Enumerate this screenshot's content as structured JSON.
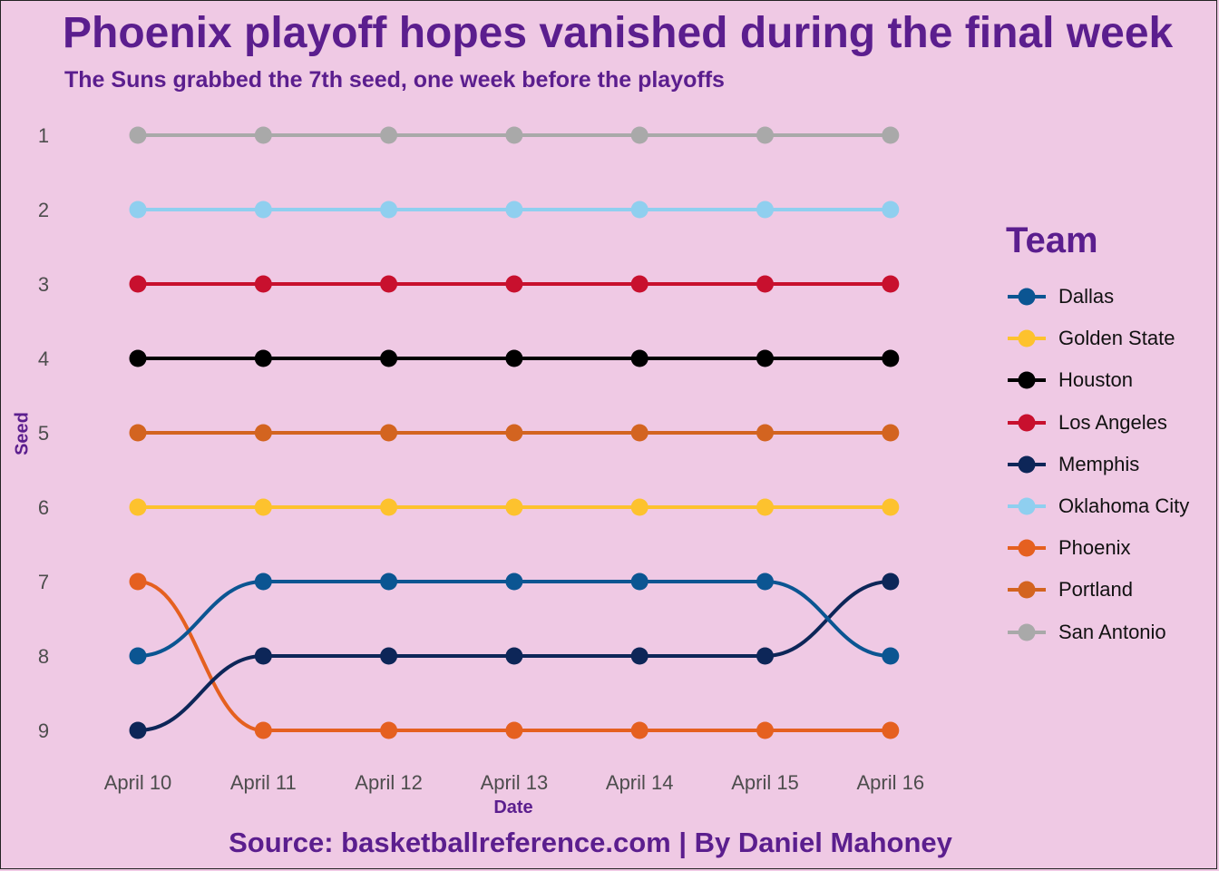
{
  "title": "Phoenix playoff hopes vanished during the final week",
  "subtitle": "The Suns grabbed the 7th seed, one week before the playoffs",
  "caption": "Source: basketballreference.com | By Daniel Mahoney",
  "chart_data": {
    "type": "line",
    "xlabel": "Date",
    "ylabel": "Seed",
    "x": [
      "April 10",
      "April 11",
      "April 12",
      "April 13",
      "April 14",
      "April 15",
      "April 16"
    ],
    "y_ticks": [
      "1",
      "2",
      "3",
      "4",
      "5",
      "6",
      "7",
      "8",
      "9"
    ],
    "ylim": [
      9,
      1
    ],
    "y_reversed": true,
    "grid": false,
    "legend_title": "Team",
    "legend_position": "right",
    "series": [
      {
        "name": "Dallas",
        "color": "#0b5592",
        "values": [
          8,
          7,
          7,
          7,
          7,
          7,
          8
        ]
      },
      {
        "name": "Golden State",
        "color": "#fdc22e",
        "values": [
          6,
          6,
          6,
          6,
          6,
          6,
          6
        ]
      },
      {
        "name": "Houston",
        "color": "#000000",
        "values": [
          4,
          4,
          4,
          4,
          4,
          4,
          4
        ]
      },
      {
        "name": "Los Angeles",
        "color": "#c8102e",
        "values": [
          3,
          3,
          3,
          3,
          3,
          3,
          3
        ]
      },
      {
        "name": "Memphis",
        "color": "#0d2658",
        "values": [
          9,
          8,
          8,
          8,
          8,
          8,
          7
        ]
      },
      {
        "name": "Oklahoma City",
        "color": "#8fcfef",
        "values": [
          2,
          2,
          2,
          2,
          2,
          2,
          2
        ]
      },
      {
        "name": "Phoenix",
        "color": "#e56020",
        "values": [
          7,
          9,
          9,
          9,
          9,
          9,
          9
        ]
      },
      {
        "name": "Portland",
        "color": "#d36420",
        "values": [
          5,
          5,
          5,
          5,
          5,
          5,
          5
        ]
      },
      {
        "name": "San Antonio",
        "color": "#a9a9a9",
        "values": [
          1,
          1,
          1,
          1,
          1,
          1,
          1
        ]
      }
    ],
    "draw_order": [
      "Portland",
      "Golden State",
      "Houston",
      "Los Angeles",
      "Oklahoma City",
      "San Antonio",
      "Phoenix",
      "Memphis",
      "Dallas"
    ]
  }
}
